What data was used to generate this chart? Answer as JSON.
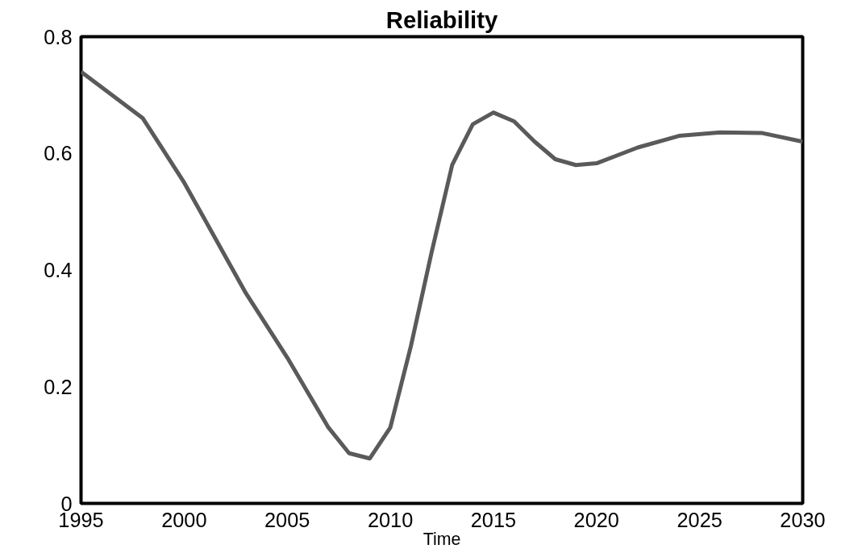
{
  "chart_data": {
    "type": "line",
    "title": "Reliability",
    "xlabel": "Time",
    "x": [
      1995,
      1998,
      2000,
      2003,
      2005,
      2007,
      2008,
      2009,
      2010,
      2011,
      2012,
      2013,
      2014,
      2015,
      2016,
      2017,
      2018,
      2019,
      2020,
      2022,
      2024,
      2026,
      2028,
      2030
    ],
    "series": [
      {
        "color": "#5a5a5a",
        "values": [
          0.74,
          0.66,
          0.55,
          0.36,
          0.25,
          0.13,
          0.086,
          0.077,
          0.13,
          0.27,
          0.43,
          0.58,
          0.65,
          0.67,
          0.655,
          0.62,
          0.59,
          0.58,
          0.583,
          0.61,
          0.63,
          0.636,
          0.635,
          0.62
        ]
      }
    ],
    "xlim": [
      1995,
      2030
    ],
    "xticks": [
      1995,
      2000,
      2005,
      2010,
      2015,
      2020,
      2025,
      2030
    ],
    "ylim": [
      0,
      0.8
    ],
    "yticks": [
      0,
      0.2,
      0.4,
      0.6,
      0.8
    ],
    "grid": false,
    "line_style": "solid"
  }
}
